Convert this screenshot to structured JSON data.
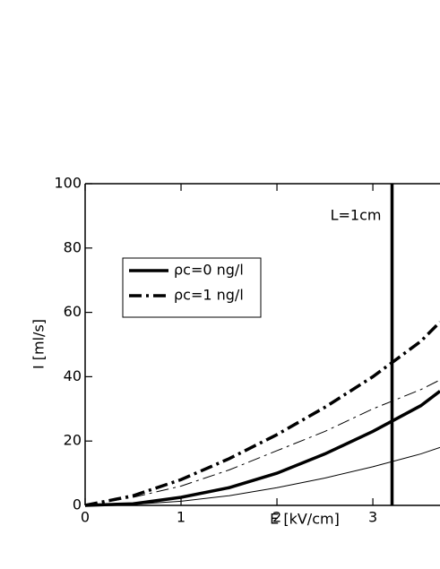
{
  "chart_data": {
    "type": "line",
    "x_label": "E [kV/cm]",
    "y_label": "I [ml/s]",
    "x": [
      0,
      0.5,
      1,
      1.5,
      2,
      2.5,
      3,
      3.5,
      3.7
    ],
    "series": [
      {
        "name": "ρc=0 ng/l",
        "color": "#000000",
        "width": 3.5,
        "dash": "solid",
        "values": [
          0,
          0.5,
          2.5,
          5.5,
          10,
          16,
          23,
          31,
          35.5
        ]
      },
      {
        "name": "ρc=1 ng/l",
        "color": "#000000",
        "width": 3.5,
        "dash": "dashdot",
        "values": [
          0,
          3,
          8,
          14.5,
          22,
          30.5,
          40,
          51,
          57
        ]
      },
      {
        "color": "#000000",
        "width": 1,
        "dash": "solid",
        "values": [
          0,
          0.3,
          1.3,
          3,
          5.5,
          8.5,
          12,
          16,
          18
        ]
      },
      {
        "color": "#000000",
        "width": 1,
        "dash": "dashdot",
        "values": [
          0,
          2.5,
          6,
          11,
          17,
          23,
          30,
          36,
          39
        ]
      }
    ],
    "xlim": [
      0,
      3.7
    ],
    "ylim": [
      0,
      100
    ],
    "xticks": [
      0,
      1,
      2,
      3
    ],
    "yticks": [
      0,
      20,
      40,
      60,
      80,
      100
    ],
    "vline": {
      "x": 3.2,
      "label": "L=1cm"
    },
    "legend": "upper left"
  }
}
